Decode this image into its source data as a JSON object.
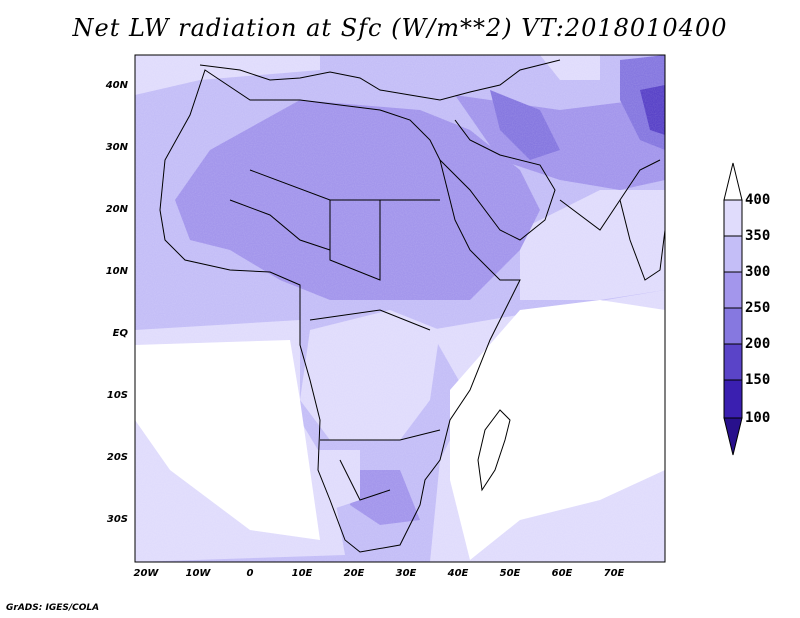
{
  "title": "Net LW radiation at Sfc (W/m**2) VT:2018010400",
  "footer": "GrADS: IGES/COLA",
  "colors": {
    "c350_400": "#e0dcfc",
    "c300_350": "#c4bef7",
    "c250_300": "#a396ec",
    "c200_250": "#8678e0",
    "c150_200": "#5a44c8",
    "c100_150": "#3a1fb0",
    "c_lt100": "#28108c",
    "c_gt400": "#ffffff",
    "coast": "#000000"
  },
  "map": {
    "lon_range": [
      -22,
      80
    ],
    "lat_range": [
      -37,
      45
    ],
    "lon_ticks": [
      "20W",
      "10W",
      "0",
      "10E",
      "20E",
      "30E",
      "40E",
      "50E",
      "60E",
      "70E"
    ],
    "lat_ticks": [
      "40N",
      "30N",
      "20N",
      "10N",
      "EQ",
      "10S",
      "20S",
      "30S"
    ]
  },
  "colorbar": {
    "labels": [
      "400",
      "350",
      "300",
      "250",
      "200",
      "150",
      "100"
    ]
  }
}
